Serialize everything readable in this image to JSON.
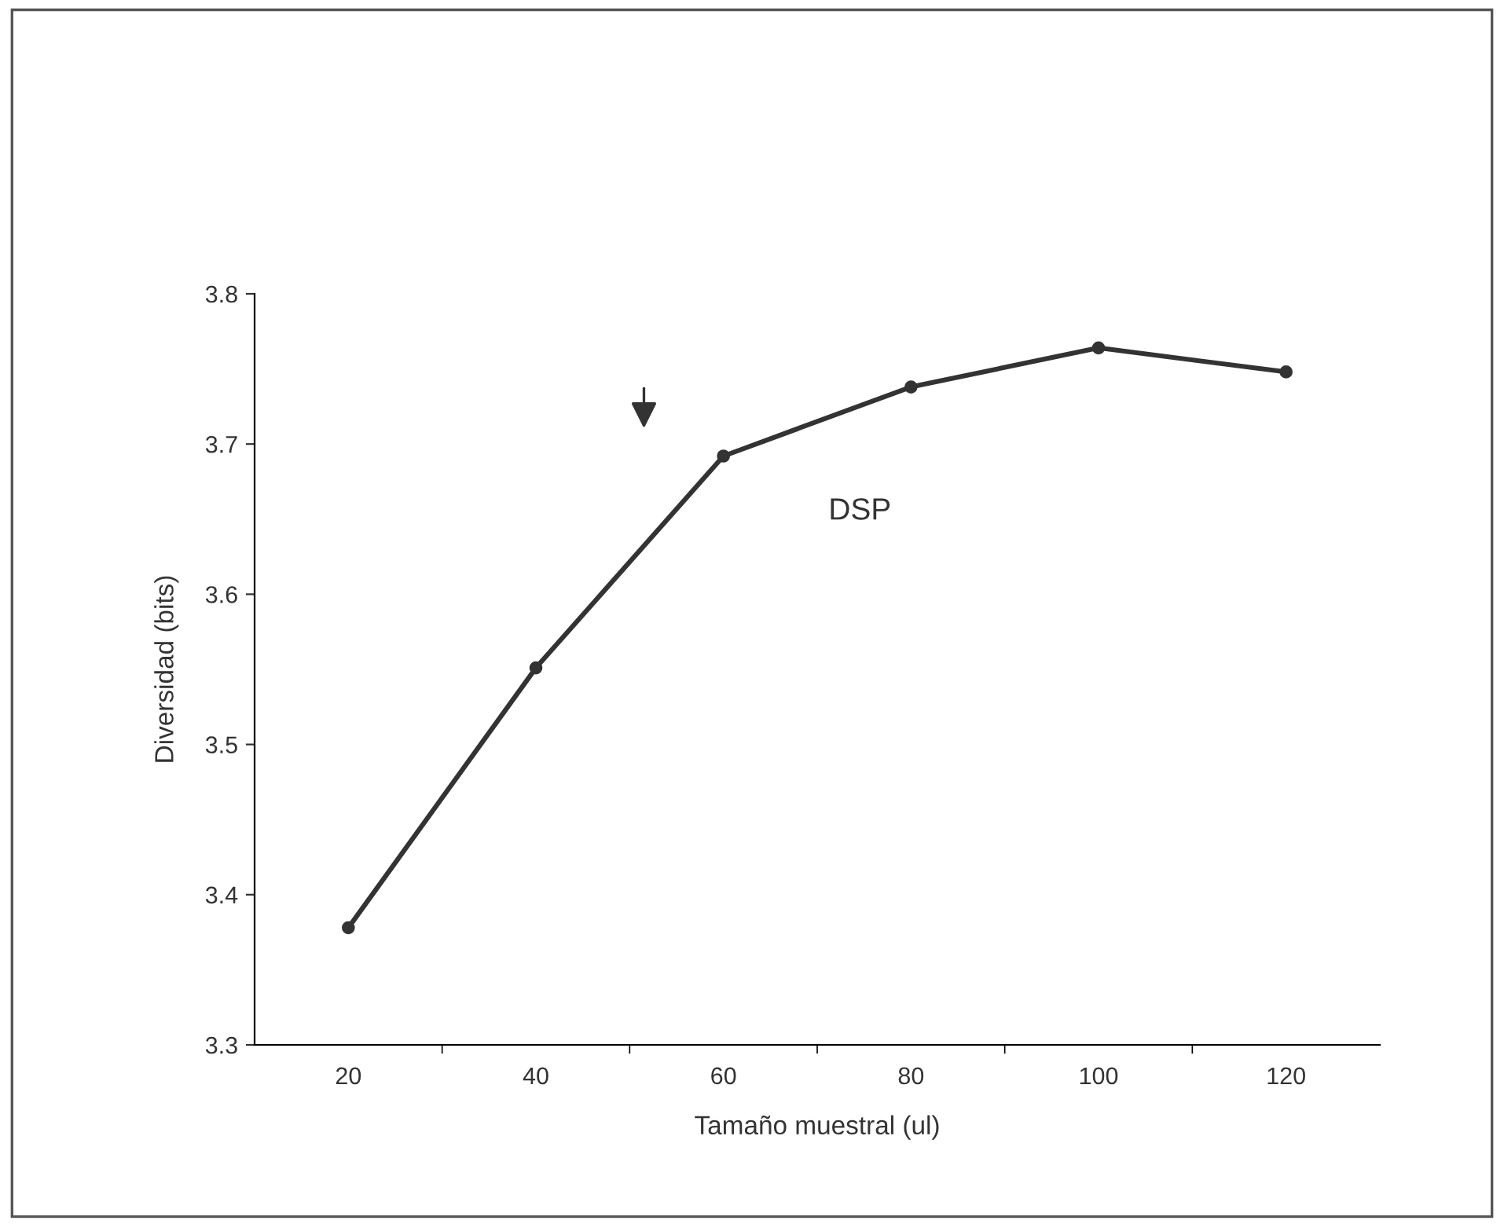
{
  "chart_data": {
    "type": "line",
    "xlabel": "Tamaño muestral (ul)",
    "ylabel": "Diversidad (bits)",
    "categories": [
      "20",
      "40",
      "60",
      "80",
      "100",
      "120"
    ],
    "values": [
      3.378,
      3.551,
      3.692,
      3.738,
      3.764,
      3.748
    ],
    "color": "#333333",
    "marker": "circle",
    "line_style": "solid",
    "ylim": [
      3.3,
      3.8
    ],
    "yticks": [
      3.3,
      3.4,
      3.5,
      3.6,
      3.7,
      3.8
    ],
    "grid": false,
    "legend": false,
    "annotations": [
      "DSP"
    ]
  }
}
